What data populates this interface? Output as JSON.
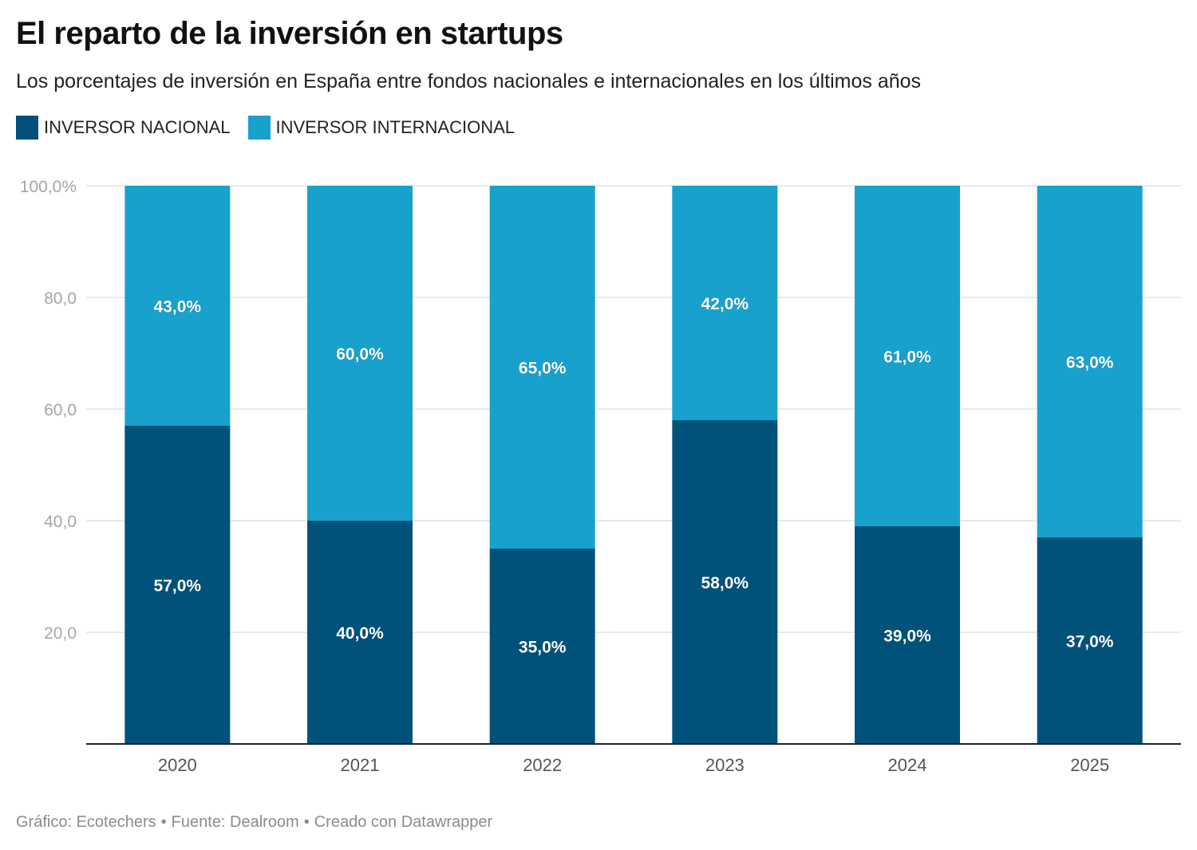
{
  "title": "El reparto de la inversión en startups",
  "subtitle": "Los porcentajes de inversión en España entre fondos nacionales e internacionales en los últimos años",
  "legend": [
    {
      "label": "INVERSOR NACIONAL",
      "color": "#00527a"
    },
    {
      "label": "INVERSOR INTERNACIONAL",
      "color": "#18a1cd"
    }
  ],
  "footer": {
    "graphic": "Gráfico: Ecotechers",
    "source": "Fuente: Dealroom",
    "created": "Creado con Datawrapper",
    "separator": "•"
  },
  "chart_data": {
    "type": "bar",
    "stacked": true,
    "categories": [
      "2020",
      "2021",
      "2022",
      "2023",
      "2024",
      "2025"
    ],
    "series": [
      {
        "name": "INVERSOR NACIONAL",
        "color": "#00527a",
        "values": [
          57,
          40,
          35,
          58,
          39,
          37
        ],
        "labels": [
          "57,0%",
          "40,0%",
          "35,0%",
          "58,0%",
          "39,0%",
          "37,0%"
        ]
      },
      {
        "name": "INVERSOR INTERNACIONAL",
        "color": "#18a1cd",
        "values": [
          43,
          60,
          65,
          42,
          61,
          63
        ],
        "labels": [
          "43,0%",
          "60,0%",
          "65,0%",
          "42,0%",
          "61,0%",
          "63,0%"
        ]
      }
    ],
    "ylim": [
      0,
      100
    ],
    "yticks": [
      20,
      40,
      60,
      80,
      100
    ],
    "ytick_labels": [
      "20,0",
      "40,0",
      "60,0",
      "80,0",
      "100,0%"
    ],
    "grid": true,
    "legend_position": "top-left",
    "xlabel": "",
    "ylabel": ""
  }
}
